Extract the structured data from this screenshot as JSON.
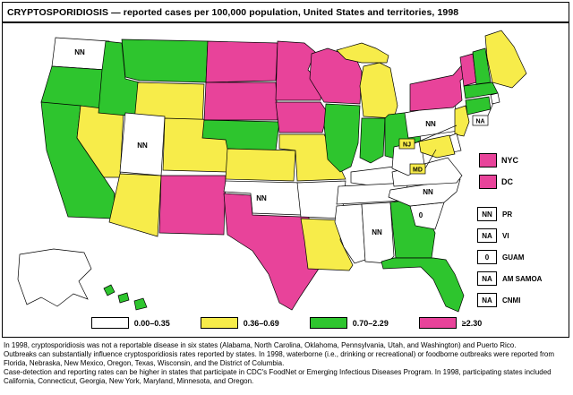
{
  "title": "CRYPTOSPORIDIOSIS — reported cases per 100,000 population, United States and territories, 1998",
  "colors": {
    "cat1": "#FFFFFF",
    "cat2": "#F7EC4A",
    "cat3": "#2EC52E",
    "cat4": "#E8439A",
    "outline": "#000000"
  },
  "legend": {
    "items": [
      {
        "label": "0.00–0.35",
        "category": "cat1"
      },
      {
        "label": "0.36–0.69",
        "category": "cat2"
      },
      {
        "label": "0.70–2.29",
        "category": "cat3"
      },
      {
        "label": "≥2.30",
        "category": "cat4"
      }
    ]
  },
  "side_legend": {
    "cities": [
      {
        "label": "NYC",
        "category": "cat4"
      },
      {
        "label": "DC",
        "category": "cat4"
      }
    ],
    "territories": [
      {
        "label": "PR",
        "value": "NN"
      },
      {
        "label": "VI",
        "value": "NA"
      },
      {
        "label": "GUAM",
        "value": "0"
      },
      {
        "label": "AM SAMOA",
        "value": "NA"
      },
      {
        "label": "CNMI",
        "value": "NA"
      }
    ]
  },
  "map": {
    "states": [
      {
        "code": "WA",
        "category": "cat1",
        "label": "NN"
      },
      {
        "code": "OR",
        "category": "cat3"
      },
      {
        "code": "CA",
        "category": "cat3"
      },
      {
        "code": "NV",
        "category": "cat2"
      },
      {
        "code": "ID",
        "category": "cat3"
      },
      {
        "code": "MT",
        "category": "cat3"
      },
      {
        "code": "WY",
        "category": "cat2"
      },
      {
        "code": "UT",
        "category": "cat1",
        "label": "NN"
      },
      {
        "code": "CO",
        "category": "cat2"
      },
      {
        "code": "AZ",
        "category": "cat2"
      },
      {
        "code": "NM",
        "category": "cat4"
      },
      {
        "code": "ND",
        "category": "cat4"
      },
      {
        "code": "SD",
        "category": "cat4"
      },
      {
        "code": "NE",
        "category": "cat3"
      },
      {
        "code": "KS",
        "category": "cat2"
      },
      {
        "code": "OK",
        "category": "cat1",
        "label": "NN"
      },
      {
        "code": "TX",
        "category": "cat4"
      },
      {
        "code": "MN",
        "category": "cat4"
      },
      {
        "code": "IA",
        "category": "cat4"
      },
      {
        "code": "MO",
        "category": "cat2"
      },
      {
        "code": "AR",
        "category": "cat1"
      },
      {
        "code": "LA",
        "category": "cat2"
      },
      {
        "code": "WI",
        "category": "cat4"
      },
      {
        "code": "IL",
        "category": "cat3"
      },
      {
        "code": "MI",
        "category": "cat2"
      },
      {
        "code": "IN",
        "category": "cat3"
      },
      {
        "code": "OH",
        "category": "cat3"
      },
      {
        "code": "KY",
        "category": "cat1"
      },
      {
        "code": "TN",
        "category": "cat1"
      },
      {
        "code": "MS",
        "category": "cat1"
      },
      {
        "code": "AL",
        "category": "cat1",
        "label": "NN"
      },
      {
        "code": "GA",
        "category": "cat3"
      },
      {
        "code": "FL",
        "category": "cat3"
      },
      {
        "code": "SC",
        "category": "cat1",
        "label": "0"
      },
      {
        "code": "NC",
        "category": "cat1",
        "label": "NN"
      },
      {
        "code": "VA",
        "category": "cat1"
      },
      {
        "code": "WV",
        "category": "cat1"
      },
      {
        "code": "PA",
        "category": "cat1",
        "label": "NN"
      },
      {
        "code": "NY",
        "category": "cat4"
      },
      {
        "code": "NJ",
        "category": "cat2"
      },
      {
        "code": "DE",
        "category": "cat1"
      },
      {
        "code": "MD",
        "category": "cat2"
      },
      {
        "code": "CT",
        "category": "cat3"
      },
      {
        "code": "RI",
        "category": "cat1"
      },
      {
        "code": "MA",
        "category": "cat3"
      },
      {
        "code": "VT",
        "category": "cat4"
      },
      {
        "code": "NH",
        "category": "cat3"
      },
      {
        "code": "ME",
        "category": "cat2"
      },
      {
        "code": "AK",
        "category": "cat1"
      },
      {
        "code": "HI",
        "category": "cat3"
      }
    ],
    "callouts": [
      {
        "id": "NJ",
        "text": "NJ",
        "category": "cat2"
      },
      {
        "id": "MD",
        "text": "MD",
        "category": "cat2"
      },
      {
        "id": "NA",
        "text": "NA",
        "category": "cat1"
      }
    ]
  },
  "footnotes": [
    "In 1998, cryptosporidiosis was not a reportable disease in six states (Alabama, North Carolina, Oklahoma, Pennsylvania, Utah, and Washington) and Puerto Rico.",
    "Outbreaks can substantially influence cryptosporidiosis rates reported by states. In 1998, waterborne (i.e., drinking or recreational) or foodborne outbreaks were reported from Florida, Nebraska, New Mexico, Oregon, Texas, Wisconsin, and the District of Columbia.",
    "Case-detection and reporting rates can be higher in states that participate in CDC's FoodNet or Emerging Infectious Diseases Program. In 1998, participating states included California, Connecticut, Georgia, New York, Maryland, Minnesota, and Oregon."
  ]
}
